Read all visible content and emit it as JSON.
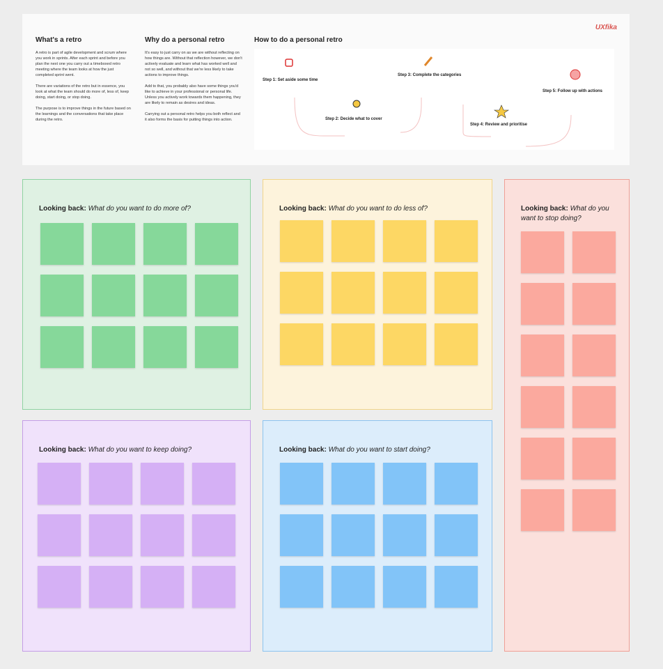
{
  "header": {
    "logo": "UXfika",
    "columns": [
      {
        "title": "What's a retro",
        "paragraphs": [
          "A retro is part of agile development and scrum where you work in sprints. After each sprint and before you plan the next one you carry out a timeboxed retro meeting where the team looks at how the just completed sprint went.",
          "There are variations of the retro but in essence, you look at what the team should do more of, less of, keep doing, start doing, or stop doing.",
          "The purpose is to improve things in the future based on the learnings and the conversations that take place during the retro."
        ]
      },
      {
        "title": "Why do a personal retro",
        "paragraphs": [
          "It's easy to just carry on as we are without reflecting on how things are. Without that reflection however, we don't actively evaluate and learn what has worked well and not so well, and without that we're less likely to take actions to improve things.",
          "Add to that, you probably also have some things you'd like to achieve in your professional or personal life. Unless you actively work towards them happening, they are likely to remain as desires and ideas.",
          "Carrying out a personal retro helps you both reflect and it also forms the basis for putting things into action."
        ]
      }
    ],
    "how_title": "How to do a personal retro",
    "steps": [
      "Step 1: Set aside some time",
      "Step 2: Decide what to cover",
      "Step 3: Complete the categories",
      "Step 4: Review and prioritise",
      "Step 5: Follow up with actions"
    ]
  },
  "panels": [
    {
      "label": "Looking back:",
      "question": "What do you want to do more of?"
    },
    {
      "label": "Looking back:",
      "question": "What do you want to do less of?"
    },
    {
      "label": "Looking back:",
      "question": "What do you want to stop doing?"
    },
    {
      "label": "Looking back:",
      "question": "What do you want to keep doing?"
    },
    {
      "label": "Looking back:",
      "question": "What do you want to start doing?"
    }
  ]
}
